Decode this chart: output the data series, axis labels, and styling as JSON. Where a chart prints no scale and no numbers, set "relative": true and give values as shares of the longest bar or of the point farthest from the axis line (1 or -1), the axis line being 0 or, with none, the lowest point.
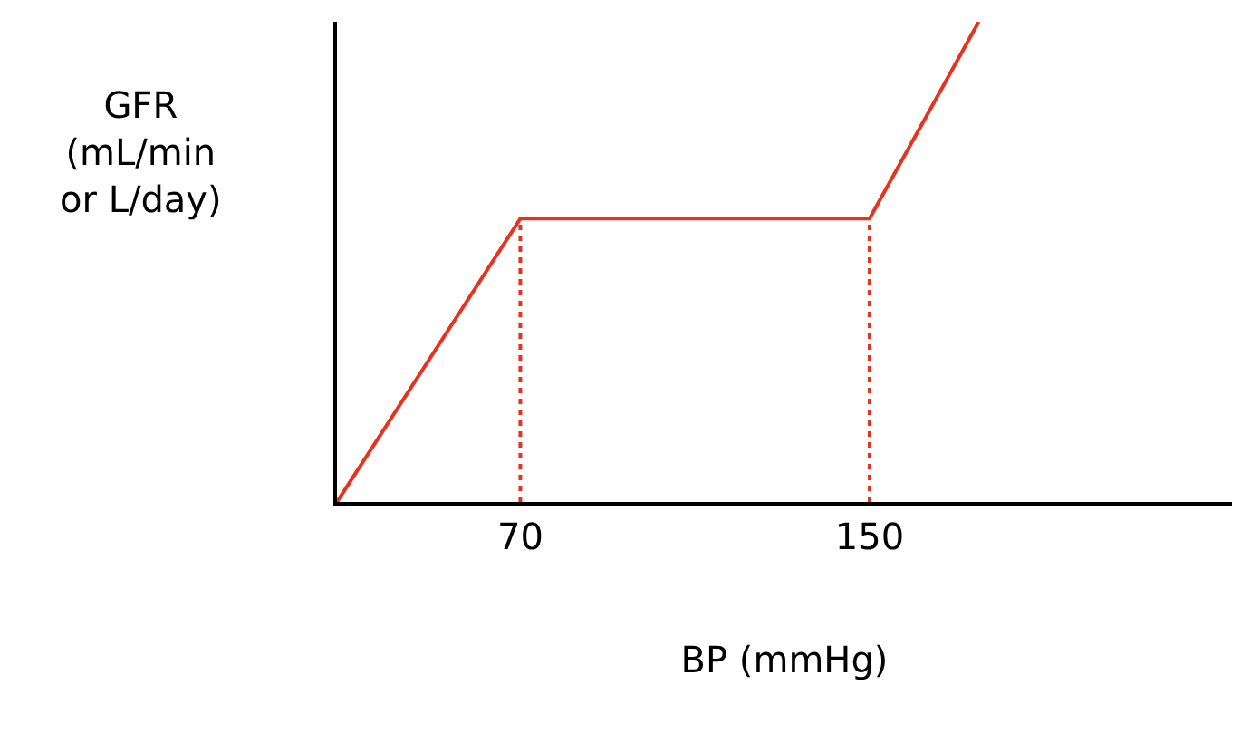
{
  "chart_data": {
    "type": "line",
    "relative": true,
    "xlabel": "BP (mmHg)",
    "ylabel": "GFR\n(mL/min\nor L/day)",
    "xlim": [
      28,
      233
    ],
    "xticks": [
      70,
      150
    ],
    "grid": false,
    "marker": "none",
    "series": [
      {
        "color": "#e8321e",
        "x": [
          28,
          70,
          150,
          175
        ],
        "values": [
          0,
          0.59,
          0.59,
          1
        ],
        "line_style": "solid"
      },
      {
        "color": "#e8321e",
        "x": [
          70,
          70
        ],
        "values": [
          0,
          0.59
        ],
        "line_style": "dotted"
      },
      {
        "color": "#e8321e",
        "x": [
          150,
          150
        ],
        "values": [
          0,
          0.59
        ],
        "line_style": "dotted"
      }
    ]
  }
}
